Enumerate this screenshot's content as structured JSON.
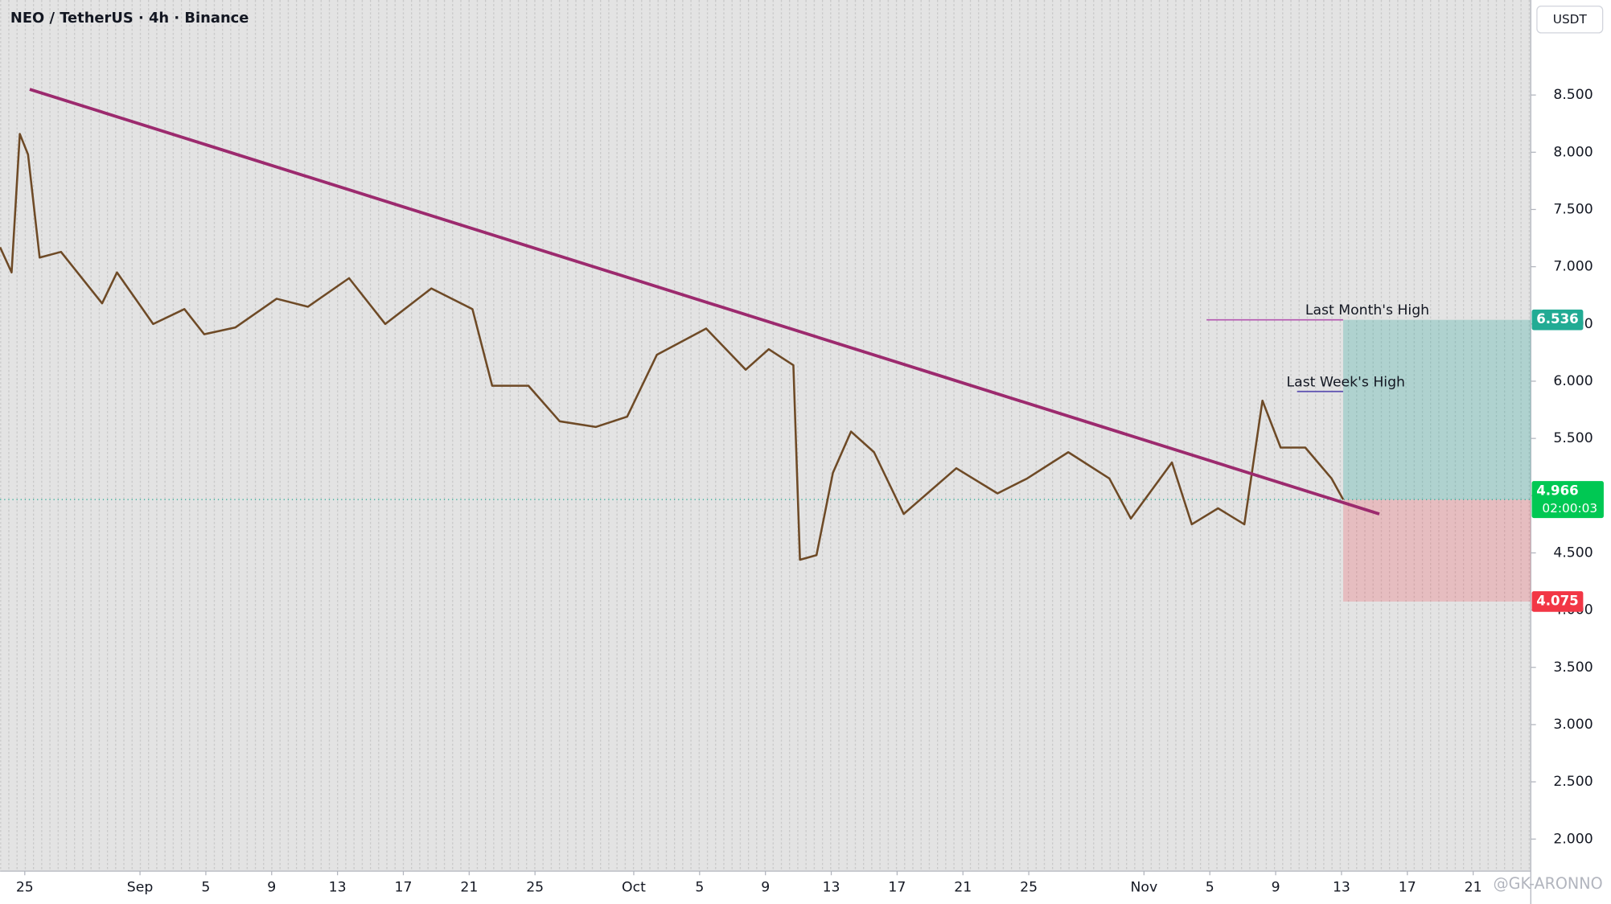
{
  "chart_data": {
    "type": "line",
    "title": "NEO / TetherUS · 4h · Binance",
    "currency": "USDT",
    "watermark": "@GK-ARONNO",
    "xlim": [
      -1.5,
      91.5
    ],
    "xticks": [
      {
        "value": 0,
        "label": "25"
      },
      {
        "value": 7,
        "label": "Sep"
      },
      {
        "value": 11,
        "label": "5"
      },
      {
        "value": 15,
        "label": "9"
      },
      {
        "value": 19,
        "label": "13"
      },
      {
        "value": 23,
        "label": "17"
      },
      {
        "value": 27,
        "label": "21"
      },
      {
        "value": 31,
        "label": "25"
      },
      {
        "value": 37,
        "label": "Oct"
      },
      {
        "value": 41,
        "label": "5"
      },
      {
        "value": 45,
        "label": "9"
      },
      {
        "value": 49,
        "label": "13"
      },
      {
        "value": 53,
        "label": "17"
      },
      {
        "value": 57,
        "label": "21"
      },
      {
        "value": 61,
        "label": "25"
      },
      {
        "value": 68,
        "label": "Nov"
      },
      {
        "value": 72,
        "label": "5"
      },
      {
        "value": 76,
        "label": "9"
      },
      {
        "value": 80,
        "label": "13"
      },
      {
        "value": 84,
        "label": "17"
      },
      {
        "value": 88,
        "label": "21"
      }
    ],
    "ylim": [
      1.72,
      9.33
    ],
    "yticks": [
      {
        "value": 2,
        "label": "2.000"
      },
      {
        "value": 2.5,
        "label": "2.500"
      },
      {
        "value": 3,
        "label": "3.000"
      },
      {
        "value": 3.5,
        "label": "3.500"
      },
      {
        "value": 4,
        "label": "4.000"
      },
      {
        "value": 4.5,
        "label": "4.500"
      },
      {
        "value": 5,
        "label": "5.000"
      },
      {
        "value": 5.5,
        "label": "5.500"
      },
      {
        "value": 6,
        "label": "6.000"
      },
      {
        "value": 6.5,
        "label": "6.500"
      },
      {
        "value": 7,
        "label": "7.000"
      },
      {
        "value": 7.5,
        "label": "7.500"
      },
      {
        "value": 8,
        "label": "8.000"
      },
      {
        "value": 8.5,
        "label": "8.500"
      }
    ],
    "series": [
      {
        "color": "#6e4a26",
        "x": [
          -1.5,
          -0.8,
          -0.3,
          0.2,
          0.9,
          2.2,
          4.7,
          5.6,
          7.8,
          9.7,
          10.9,
          12.8,
          15.3,
          17.2,
          19.7,
          21.9,
          24.7,
          27.2,
          28.4,
          30.6,
          32.5,
          34.7,
          36.6,
          38.4,
          41.4,
          43.8,
          45.2,
          46.7,
          47.1,
          48.1,
          49.1,
          50.2,
          51.6,
          53.4,
          56.6,
          59.1,
          60.9,
          63.4,
          65.9,
          67.2,
          69.7,
          70.9,
          72.5,
          74.1,
          75.2,
          76.3,
          77.8,
          79.4,
          80.1
        ],
        "values": [
          7.17,
          6.95,
          8.16,
          7.98,
          7.08,
          7.13,
          6.68,
          6.95,
          6.5,
          6.63,
          6.41,
          6.47,
          6.72,
          6.65,
          6.9,
          6.5,
          6.81,
          6.63,
          5.96,
          5.96,
          5.65,
          5.6,
          5.69,
          6.23,
          6.46,
          6.1,
          6.28,
          6.14,
          4.44,
          4.48,
          5.2,
          5.56,
          5.38,
          4.84,
          5.24,
          5.02,
          5.15,
          5.38,
          5.15,
          4.8,
          5.29,
          4.75,
          4.89,
          4.75,
          5.83,
          5.42,
          5.42,
          5.15,
          4.966
        ]
      }
    ],
    "trendline": {
      "color": "#9c2a6e",
      "x": [
        0.3,
        82.3
      ],
      "values": [
        8.55,
        4.84
      ]
    },
    "levels": [
      {
        "label": "Last Month's High",
        "value": 6.536,
        "x": [
          71.8,
          80.1
        ],
        "color": "#b455b0"
      },
      {
        "label": "Last Week's High",
        "value": 5.91,
        "x": [
          77.3,
          80.1
        ],
        "color": "#5b4fb0"
      }
    ],
    "position": {
      "entry": 4.966,
      "target": 6.536,
      "stop": 4.075,
      "x": 80.1
    },
    "last_price": {
      "value": 4.966,
      "countdown": "02:00:03"
    },
    "prev_close": 4.973
  }
}
